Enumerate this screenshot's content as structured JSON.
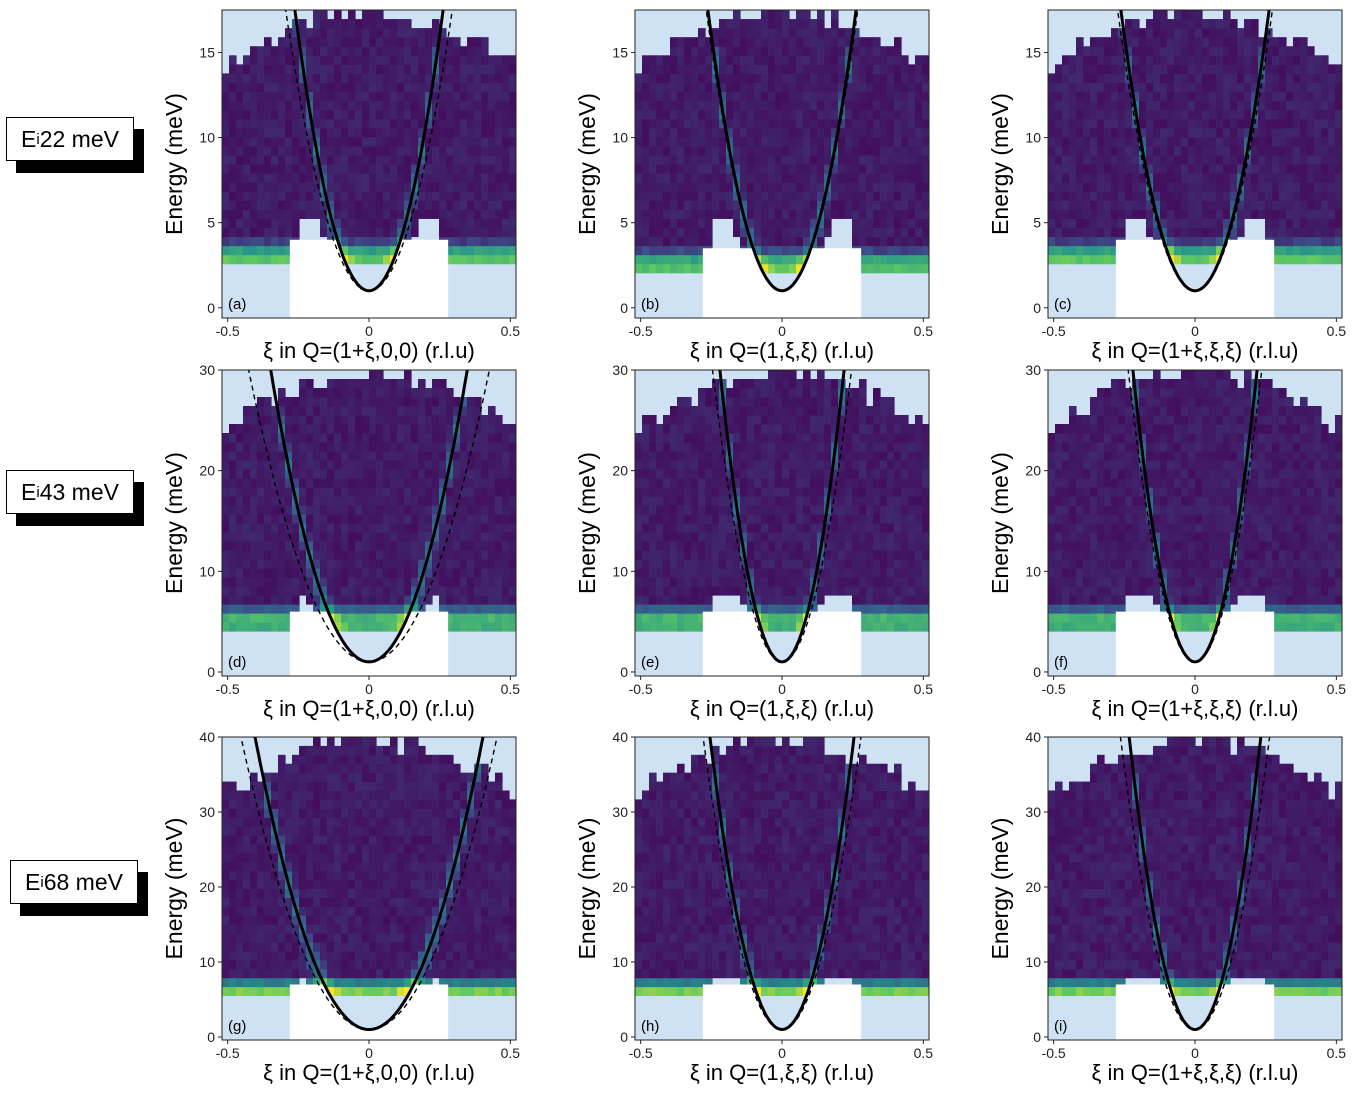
{
  "row_labels": [
    {
      "prefix": "E",
      "sub": "i",
      "suffix": " 22 meV"
    },
    {
      "prefix": "E",
      "sub": "i",
      "suffix": " 43 meV"
    },
    {
      "prefix": "E",
      "sub": "i",
      "suffix": " 68 meV"
    }
  ],
  "colors": {
    "background_region": "#cfe2f3",
    "colormap": [
      "#440154",
      "#3b528b",
      "#21908d",
      "#5dc863",
      "#fde725"
    ],
    "solid_curve": "#000000",
    "dashed_curve": "#000000"
  },
  "chart_data": [
    {
      "type": "heatmap",
      "panel": "(a)",
      "xlabel": "ξ in Q=(1+ξ,0,0) (r.l.u)",
      "ylabel": "Energy (meV)",
      "xlim": [
        -0.52,
        0.52
      ],
      "ylim": [
        -0.6,
        17.5
      ],
      "xticks": [
        "-0.5",
        "0",
        "0.5"
      ],
      "yticks": [
        "0",
        "5",
        "10",
        "15"
      ],
      "solid_curve": {
        "E0": 1.0,
        "k": 240
      },
      "dashed_curve": {
        "E0": 1.0,
        "k": 190
      },
      "elastic_energy": 3.0
    },
    {
      "type": "heatmap",
      "panel": "(b)",
      "xlabel": "ξ in Q=(1,ξ,ξ) (r.l.u)",
      "ylabel": "Energy (meV)",
      "xlim": [
        -0.52,
        0.52
      ],
      "ylim": [
        -0.6,
        17.5
      ],
      "xticks": [
        "-0.5",
        "0",
        "0.5"
      ],
      "yticks": [
        "0",
        "5",
        "10",
        "15"
      ],
      "solid_curve": {
        "E0": 1.0,
        "k": 240
      },
      "dashed_curve": {
        "E0": 1.0,
        "k": 230
      },
      "elastic_energy": 2.5
    },
    {
      "type": "heatmap",
      "panel": "(c)",
      "xlabel": "ξ in Q=(1+ξ,ξ,ξ) (r.l.u)",
      "ylabel": "Energy (meV)",
      "xlim": [
        -0.52,
        0.52
      ],
      "ylim": [
        -0.6,
        17.5
      ],
      "xticks": [
        "-0.5",
        "0",
        "0.5"
      ],
      "yticks": [
        "0",
        "5",
        "10",
        "15"
      ],
      "solid_curve": {
        "E0": 1.0,
        "k": 240
      },
      "dashed_curve": {
        "E0": 1.0,
        "k": 220
      },
      "elastic_energy": 3.0
    },
    {
      "type": "heatmap",
      "panel": "(d)",
      "xlabel": "ξ in Q=(1+ξ,0,0) (r.l.u)",
      "ylabel": "Energy (meV)",
      "xlim": [
        -0.52,
        0.52
      ],
      "ylim": [
        -0.4,
        30.0
      ],
      "xticks": [
        "-0.5",
        "0",
        "0.5"
      ],
      "yticks": [
        "0",
        "10",
        "20",
        "30"
      ],
      "solid_curve": {
        "E0": 1.0,
        "k": 240
      },
      "dashed_curve": {
        "E0": 1.0,
        "k": 160
      },
      "elastic_energy": 5.0
    },
    {
      "type": "heatmap",
      "panel": "(e)",
      "xlabel": "ξ in Q=(1,ξ,ξ) (r.l.u)",
      "ylabel": "Energy (meV)",
      "xlim": [
        -0.52,
        0.52
      ],
      "ylim": [
        -0.4,
        30.0
      ],
      "xticks": [
        "-0.5",
        "0",
        "0.5"
      ],
      "yticks": [
        "0",
        "10",
        "20",
        "30"
      ],
      "solid_curve": {
        "E0": 1.0,
        "k": 600
      },
      "dashed_curve": {
        "E0": 1.0,
        "k": 480
      },
      "elastic_energy": 5.0
    },
    {
      "type": "heatmap",
      "panel": "(f)",
      "xlabel": "ξ in Q=(1+ξ,ξ,ξ) (r.l.u)",
      "ylabel": "Energy (meV)",
      "xlim": [
        -0.52,
        0.52
      ],
      "ylim": [
        -0.4,
        30.0
      ],
      "xticks": [
        "-0.5",
        "0",
        "0.5"
      ],
      "yticks": [
        "0",
        "10",
        "20",
        "30"
      ],
      "solid_curve": {
        "E0": 1.0,
        "k": 600
      },
      "dashed_curve": {
        "E0": 1.0,
        "k": 520
      },
      "elastic_energy": 5.0
    },
    {
      "type": "heatmap",
      "panel": "(g)",
      "xlabel": "ξ in Q=(1+ξ,0,0) (r.l.u)",
      "ylabel": "Energy (meV)",
      "xlim": [
        -0.52,
        0.52
      ],
      "ylim": [
        -0.4,
        40.0
      ],
      "xticks": [
        "-0.5",
        "0",
        "0.5"
      ],
      "yticks": [
        "0",
        "10",
        "20",
        "30",
        "40"
      ],
      "solid_curve": {
        "E0": 1.0,
        "k": 240
      },
      "dashed_curve": {
        "E0": 1.0,
        "k": 190
      },
      "elastic_energy": 6.0
    },
    {
      "type": "heatmap",
      "panel": "(h)",
      "xlabel": "ξ in Q=(1,ξ,ξ) (r.l.u)",
      "ylabel": "Energy (meV)",
      "xlim": [
        -0.52,
        0.52
      ],
      "ylim": [
        -0.4,
        40.0
      ],
      "xticks": [
        "-0.5",
        "0",
        "0.5"
      ],
      "yticks": [
        "0",
        "10",
        "20",
        "30",
        "40"
      ],
      "solid_curve": {
        "E0": 1.0,
        "k": 600
      },
      "dashed_curve": {
        "E0": 1.0,
        "k": 500
      },
      "elastic_energy": 6.0
    },
    {
      "type": "heatmap",
      "panel": "(i)",
      "xlabel": "ξ in Q=(1+ξ,ξ,ξ) (r.l.u)",
      "ylabel": "Energy (meV)",
      "xlim": [
        -0.52,
        0.52
      ],
      "ylim": [
        -0.4,
        40.0
      ],
      "xticks": [
        "-0.5",
        "0",
        "0.5"
      ],
      "yticks": [
        "0",
        "10",
        "20",
        "30",
        "40"
      ],
      "solid_curve": {
        "E0": 1.0,
        "k": 720
      },
      "dashed_curve": {
        "E0": 1.0,
        "k": 560
      },
      "elastic_energy": 6.0
    }
  ]
}
